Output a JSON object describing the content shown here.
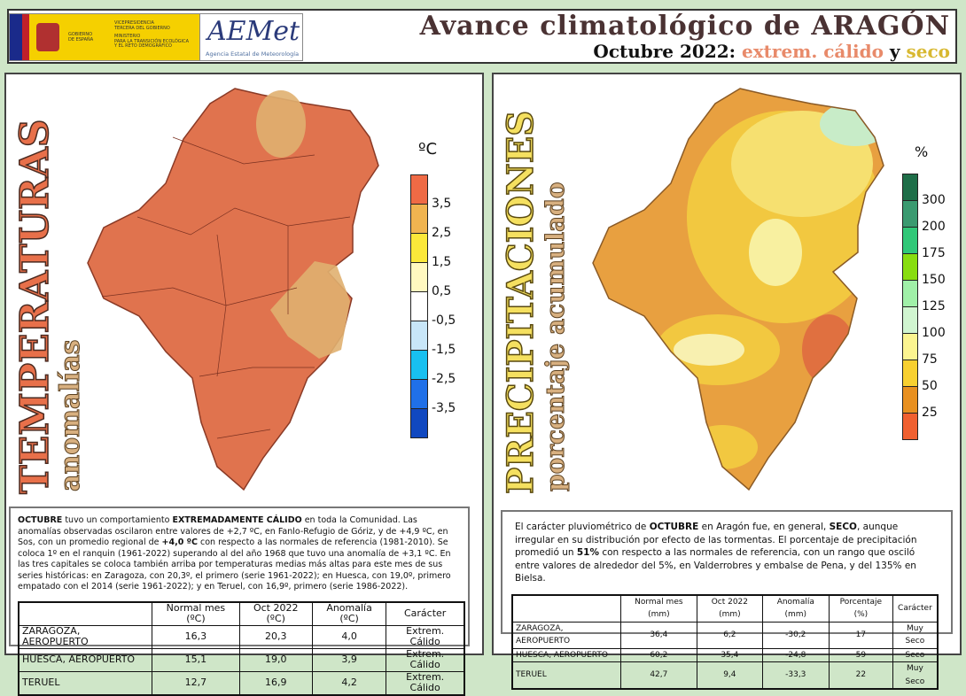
{
  "header": {
    "gov_logo": {
      "lines": [
        "GOBIERNO",
        "DE ESPAÑA"
      ],
      "ministry": [
        "VICEPRESIDENCIA",
        "TERCERA DEL GOBIERNO",
        "MINISTERIO",
        "PARA LA TRANSICIÓN ECOLÓGICA",
        "Y EL RETO DEMOGRÁFICO"
      ]
    },
    "aemet_logo": {
      "mark": "AEMet",
      "caption": "Agencia Estatal de Meteorología"
    },
    "title": "Avance climatológico de ARAGÓN",
    "subtitle_prefix": "Octubre 2022:",
    "subtitle_warm": "extrem. cálido",
    "subtitle_and": "y",
    "subtitle_dry": "seco",
    "colors": {
      "title": "#4a3233",
      "warm": "#e88a6a",
      "dry": "#d8b830"
    }
  },
  "temperature": {
    "title": "TEMPERATURAS",
    "subtitle": "anomalías",
    "unit": "ºC",
    "legend_labels": [
      "3,5",
      "2,5",
      "1,5",
      "0,5",
      "-0,5",
      "-1,5",
      "-2,5",
      "-3,5"
    ],
    "legend_colors": [
      "#ef6a45",
      "#f0b450",
      "#fbe83a",
      "#fff8c0",
      "#ffffff",
      "#c8e6f8",
      "#18c0f0",
      "#2070e8",
      "#1048c0"
    ],
    "text": "<b>OCTUBRE</b> tuvo un comportamiento <b>EXTREMADAMENTE CÁLIDO</b> en toda la Comunidad. Las anomalías observadas oscilaron entre valores de +2,7 ºC, en Fanlo-Refugio de Góriz, y de +4,9 ºC, en Sos, con un promedio regional de <b>+4,0 ºC</b> con respecto a las normales de referencia (1981-2010). Se coloca 1º en el ranquin (1961-2022) superando al del año 1968 que tuvo una anomalía de +3,1 ºC. En las tres capitales se coloca también arriba por temperaturas medias más altas para este mes de sus series históricas: en Zaragoza, con 20,3º, el primero (serie 1961-2022); en Huesca, con 19,0º, primero empatado con el 2014 (serie 1961-2022); y en Teruel, con 16,9º, primero (serie 1986-2022).",
    "table": {
      "headers": [
        "Normal mes (ºC)",
        "Oct 2022 (ºC)",
        "Anomalía (ºC)",
        "Carácter"
      ],
      "rows": [
        [
          "ZARAGOZA, AEROPUERTO",
          "16,3",
          "20,3",
          "4,0",
          "Extrem. Cálido"
        ],
        [
          "HUESCA, AEROPUERTO",
          "15,1",
          "19,0",
          "3,9",
          "Extrem. Cálido"
        ],
        [
          "TERUEL",
          "12,7",
          "16,9",
          "4,2",
          "Extrem. Cálido"
        ]
      ]
    }
  },
  "precipitation": {
    "title": "PRECIPITACIONES",
    "subtitle": "porcentaje acumulado",
    "unit": "%",
    "legend_labels": [
      "300",
      "200",
      "175",
      "150",
      "125",
      "100",
      "75",
      "50",
      "25"
    ],
    "legend_colors": [
      "#1e6e48",
      "#3a9a70",
      "#30c878",
      "#88dd10",
      "#a0f0a8",
      "#d0f5d0",
      "#fbf490",
      "#f8d030",
      "#e89020",
      "#f06030"
    ],
    "text": "El carácter pluviométrico de <b>OCTUBRE</b> en Aragón fue, en general, <b>SECO</b>, aunque irregular en su distribución por efecto de las tormentas. El porcentaje de precipitación promedió un <b>51%</b> con respecto a las normales de referencia, con un rango que osciló entre valores de alrededor del 5%, en Valderrobres y embalse de Pena, y del 135% en Bielsa.",
    "table": {
      "headers": [
        "Normal mes (mm)",
        "Oct 2022 (mm)",
        "Anomalía (mm)",
        "Porcentaje (%)",
        "Carácter"
      ],
      "rows": [
        [
          "ZARAGOZA, AEROPUERTO",
          "36,4",
          "6,2",
          "-30,2",
          "17",
          "Muy Seco"
        ],
        [
          "HUESCA, AEROPUERTO",
          "60,2",
          "35,4",
          "-24,8",
          "59",
          "Seco"
        ],
        [
          "TERUEL",
          "42,7",
          "9,4",
          "-33,3",
          "22",
          "Muy Seco"
        ]
      ]
    }
  }
}
